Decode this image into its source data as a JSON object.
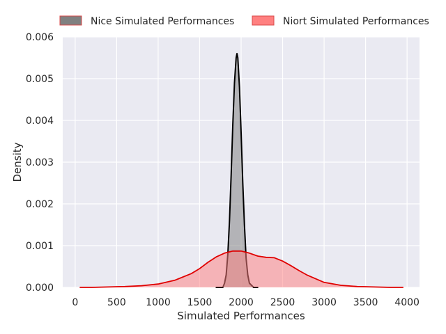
{
  "chart_data": {
    "type": "area",
    "title": "",
    "xlabel": "Simulated Performances",
    "ylabel": "Density",
    "xlim": [
      -150,
      4150
    ],
    "ylim": [
      0,
      0.006
    ],
    "xticks": [
      0,
      500,
      1000,
      1500,
      2000,
      2500,
      3000,
      3500,
      4000
    ],
    "yticks": [
      0.0,
      0.001,
      0.002,
      0.003,
      0.004,
      0.005,
      0.006
    ],
    "xtick_labels": [
      "0",
      "500",
      "1000",
      "1500",
      "2000",
      "2500",
      "3000",
      "3500",
      "4000"
    ],
    "ytick_labels": [
      "0.000",
      "0.001",
      "0.002",
      "0.003",
      "0.004",
      "0.005",
      "0.006"
    ],
    "grid": true,
    "legend_position": "top-center",
    "series": [
      {
        "name": "Nice Simulated Performances",
        "fill_color": "#808080",
        "line_color": "#000000",
        "x": [
          1700,
          1780,
          1800,
          1820,
          1840,
          1860,
          1880,
          1900,
          1920,
          1940,
          1950,
          1960,
          1980,
          2000,
          2020,
          2040,
          2060,
          2080,
          2100,
          2150,
          2200
        ],
        "y": [
          0.0,
          0.0,
          0.0001,
          0.0003,
          0.0008,
          0.0016,
          0.0027,
          0.0039,
          0.0049,
          0.0055,
          0.0056,
          0.0055,
          0.0048,
          0.0037,
          0.0025,
          0.0015,
          0.0007,
          0.0003,
          0.0001,
          0.0,
          0.0
        ]
      },
      {
        "name": "Niort Simulated Performances",
        "fill_color": "#ff8080",
        "line_color": "#e00000",
        "x": [
          60,
          200,
          400,
          600,
          800,
          1000,
          1200,
          1400,
          1500,
          1600,
          1700,
          1800,
          1900,
          2000,
          2100,
          2200,
          2300,
          2400,
          2500,
          2600,
          2700,
          2800,
          3000,
          3200,
          3400,
          3600,
          3800,
          3950
        ],
        "y": [
          0.0,
          0.0,
          1e-05,
          2e-05,
          4e-05,
          8e-05,
          0.00017,
          0.00033,
          0.00045,
          0.0006,
          0.00073,
          0.00082,
          0.00087,
          0.00087,
          0.00082,
          0.00075,
          0.00072,
          0.00071,
          0.00063,
          0.00052,
          0.0004,
          0.00029,
          0.00012,
          5e-05,
          2e-05,
          1e-05,
          0.0,
          0.0
        ]
      }
    ]
  }
}
